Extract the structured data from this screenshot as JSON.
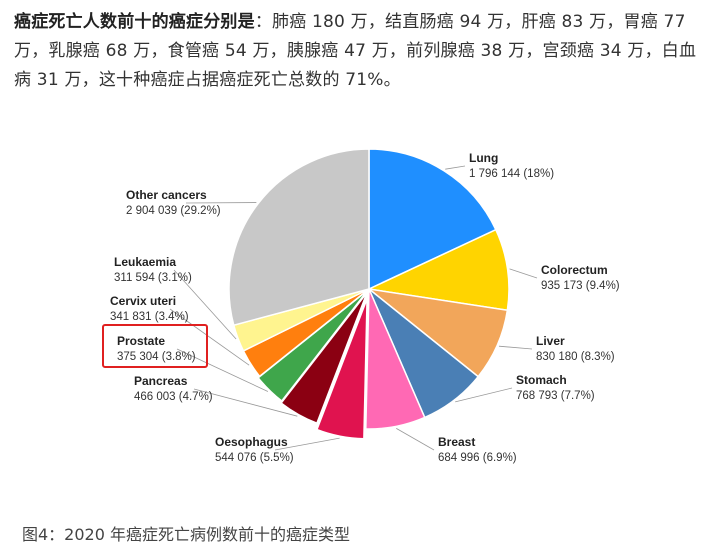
{
  "article": {
    "intro_bold": "癌症死亡人数前十的癌症分别是",
    "intro_rest": "：肺癌 180 万，结直肠癌 94 万，肝癌 83 万，胃癌 77 万，乳腺癌 68 万，食管癌 54 万，胰腺癌 47 万，前列腺癌 38 万，宫颈癌 34 万，白血病 31 万，这十种癌症占据癌症死亡总数的 71%。",
    "caption": "图4：2020 年癌症死亡病例数前十的癌症类型"
  },
  "chart_data": {
    "type": "pie",
    "slices": [
      {
        "name": "Lung",
        "value": 1796144,
        "label": "1 796 144 (18%)",
        "color": "#1f8fff"
      },
      {
        "name": "Colorectum",
        "value": 935173,
        "label": "935 173 (9.4%)",
        "color": "#ffd400"
      },
      {
        "name": "Liver",
        "value": 830180,
        "label": "830 180 (8.3%)",
        "color": "#f2a65a"
      },
      {
        "name": "Stomach",
        "value": 768793,
        "label": "768 793 (7.7%)",
        "color": "#4a7fb5"
      },
      {
        "name": "Breast",
        "value": 684996,
        "label": "684 996 (6.9%)",
        "color": "#ff69b4"
      },
      {
        "name": "Oesophagus",
        "value": 544076,
        "label": "544 076 (5.5%)",
        "color": "#e0134f"
      },
      {
        "name": "Pancreas",
        "value": 466003,
        "label": "466 003 (4.7%)",
        "color": "#8b0012"
      },
      {
        "name": "Prostate",
        "value": 375304,
        "label": "375 304 (3.8%)",
        "color": "#3fa64b"
      },
      {
        "name": "Cervix uteri",
        "value": 341831,
        "label": "341 831 (3.4%)",
        "color": "#ff7f0e"
      },
      {
        "name": "Leukaemia",
        "value": 311594,
        "label": "311 594 (3.1%)",
        "color": "#fff48f"
      },
      {
        "name": "Other cancers",
        "value": 2904039,
        "label": "2 904 039 (29.2%)",
        "color": "#c8c8c8"
      }
    ],
    "highlight": "Prostate",
    "highlight_color": "#e02020"
  }
}
